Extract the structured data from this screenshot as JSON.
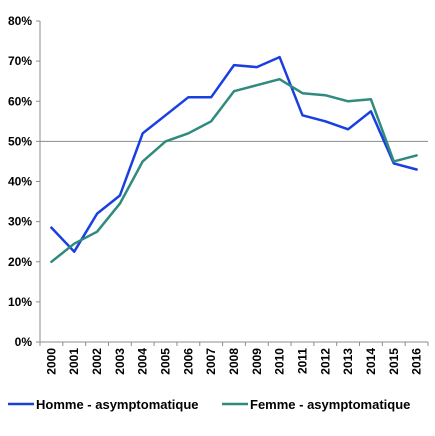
{
  "chart_data": {
    "type": "line",
    "title": "",
    "xlabel": "",
    "ylabel": "",
    "categories": [
      "2000",
      "2001",
      "2002",
      "2003",
      "2004",
      "2005",
      "2006",
      "2007",
      "2008",
      "2009",
      "2010",
      "2011",
      "2012",
      "2013",
      "2014",
      "2015",
      "2016"
    ],
    "ylim": [
      0,
      80
    ],
    "yticks": [
      0,
      10,
      20,
      30,
      40,
      50,
      60,
      70,
      80
    ],
    "ytick_labels": [
      "0%",
      "10%",
      "20%",
      "30%",
      "40%",
      "50%",
      "60%",
      "70%",
      "80%"
    ],
    "reference_line": 50,
    "grid": false,
    "legend_position": "bottom",
    "series": [
      {
        "name": "Homme - asymptomatique",
        "color": "#1a3fe0",
        "values": [
          28.5,
          22.5,
          32.0,
          36.5,
          52.0,
          56.5,
          61.0,
          61.0,
          69.0,
          68.5,
          71.0,
          56.5,
          55.0,
          53.0,
          57.5,
          44.5,
          43.0
        ]
      },
      {
        "name": "Femme - asymptomatique",
        "color": "#2e8b7d",
        "values": [
          20.0,
          24.5,
          27.5,
          34.5,
          45.0,
          50.0,
          52.0,
          55.0,
          62.5,
          64.0,
          65.5,
          62.0,
          61.5,
          60.0,
          60.5,
          45.0,
          46.5
        ]
      }
    ]
  }
}
